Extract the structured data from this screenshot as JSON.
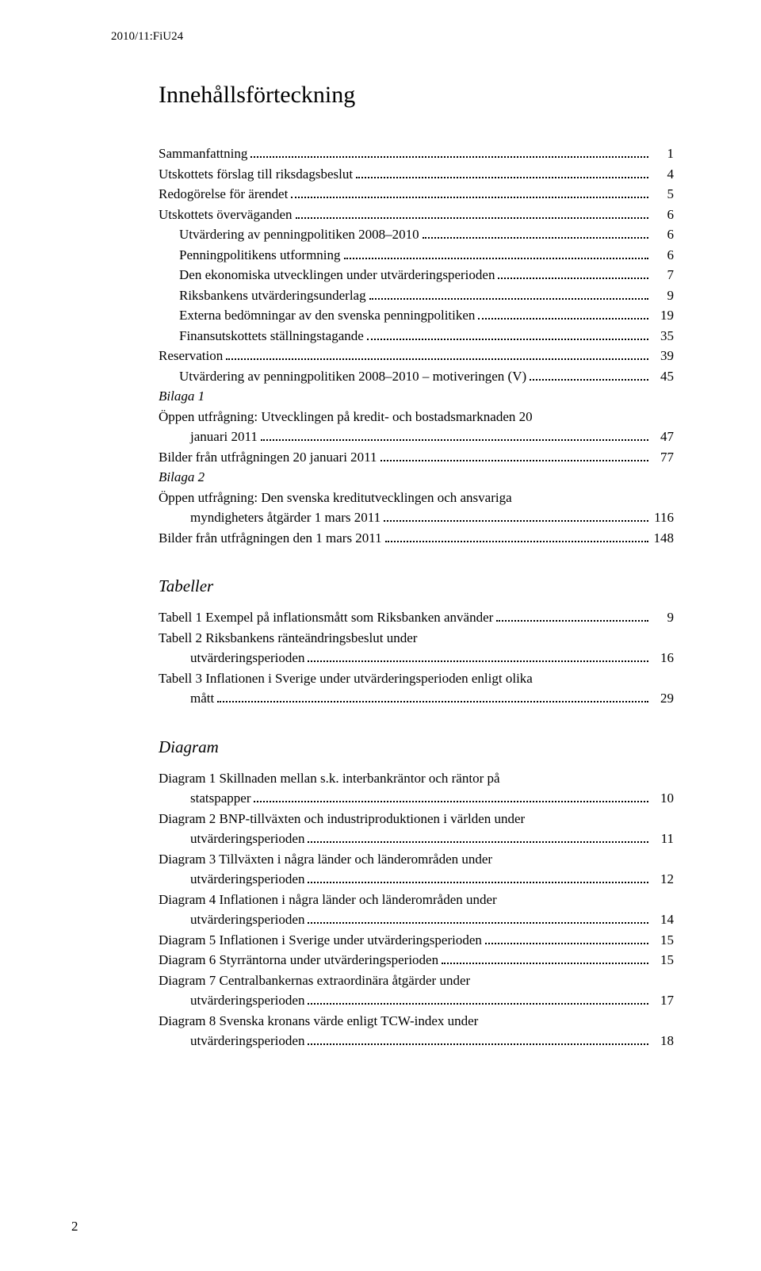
{
  "doc_id": "2010/11:FiU24",
  "title": "Innehållsförteckning",
  "page_number": "2",
  "sections": [
    {
      "type": "list",
      "items": [
        {
          "label": "Sammanfattning",
          "page": "1",
          "indent": 0
        },
        {
          "label": "Utskottets förslag till riksdagsbeslut",
          "page": "4",
          "indent": 0
        },
        {
          "label": "Redogörelse för ärendet",
          "page": "5",
          "indent": 0
        },
        {
          "label": "Utskottets överväganden",
          "page": "6",
          "indent": 0
        },
        {
          "label": "Utvärdering av penningpolitiken 2008–2010",
          "page": "6",
          "indent": 1
        },
        {
          "label": "Penningpolitikens utformning",
          "page": "6",
          "indent": 1
        },
        {
          "label": "Den ekonomiska utvecklingen under utvärderingsperioden",
          "page": "7",
          "indent": 1
        },
        {
          "label": "Riksbankens utvärderingsunderlag",
          "page": "9",
          "indent": 1
        },
        {
          "label": "Externa bedömningar av den svenska penningpolitiken",
          "page": "19",
          "indent": 1
        },
        {
          "label": "Finansutskottets ställningstagande",
          "page": "35",
          "indent": 1
        },
        {
          "label": "Reservation",
          "page": "39",
          "indent": 0
        },
        {
          "label": "Utvärdering av penningpolitiken 2008–2010 – motiveringen (V)",
          "page": "45",
          "indent": 1
        },
        {
          "label": "Bilaga 1",
          "italic": true,
          "nopage": true,
          "indent": 0
        },
        {
          "label_a": "Öppen utfrågning: Utvecklingen på kredit- och bostadsmarknaden 20",
          "label_b": "januari 2011",
          "page": "47",
          "indent": 0,
          "wrap": true
        },
        {
          "label": "Bilder från utfrågningen 20 januari 2011",
          "page": "77",
          "indent": 0
        },
        {
          "label": "Bilaga 2",
          "italic": true,
          "nopage": true,
          "indent": 0
        },
        {
          "label_a": "Öppen utfrågning: Den svenska kreditutvecklingen och ansvariga",
          "label_b": "myndigheters åtgärder 1 mars 2011",
          "page": "116",
          "indent": 0,
          "wrap": true
        },
        {
          "label": "Bilder från utfrågningen den 1 mars 2011",
          "page": "148",
          "indent": 0
        }
      ]
    },
    {
      "type": "heading",
      "text": "Tabeller"
    },
    {
      "type": "list",
      "items": [
        {
          "label": "Tabell 1 Exempel på inflationsmått som Riksbanken använder",
          "page": "9",
          "indent": 0
        },
        {
          "label_a": "Tabell 2 Riksbankens ränteändringsbeslut under",
          "label_b": "utvärderingsperioden",
          "page": "16",
          "indent": 0,
          "wrap": true
        },
        {
          "label_a": "Tabell 3 Inflationen i Sverige under utvärderingsperioden enligt olika",
          "label_b": "mått",
          "page": "29",
          "indent": 0,
          "wrap": true
        }
      ]
    },
    {
      "type": "heading",
      "text": "Diagram"
    },
    {
      "type": "list",
      "items": [
        {
          "label_a": "Diagram 1 Skillnaden mellan s.k. interbankräntor och räntor på",
          "label_b": "statspapper",
          "page": "10",
          "indent": 0,
          "wrap": true
        },
        {
          "label_a": "Diagram 2 BNP-tillväxten och industriproduktionen i världen under",
          "label_b": "utvärderingsperioden",
          "page": "11",
          "indent": 0,
          "wrap": true
        },
        {
          "label_a": "Diagram 3 Tillväxten i några länder och länderområden under",
          "label_b": "utvärderingsperioden",
          "page": "12",
          "indent": 0,
          "wrap": true
        },
        {
          "label_a": "Diagram 4 Inflationen i några länder och länderområden under",
          "label_b": "utvärderingsperioden",
          "page": "14",
          "indent": 0,
          "wrap": true
        },
        {
          "label": "Diagram 5 Inflationen i Sverige under utvärderingsperioden",
          "page": "15",
          "indent": 0
        },
        {
          "label": "Diagram 6 Styrräntorna under utvärderingsperioden",
          "page": "15",
          "indent": 0
        },
        {
          "label_a": "Diagram 7 Centralbankernas extraordinära åtgärder under",
          "label_b": "utvärderingsperioden",
          "page": "17",
          "indent": 0,
          "wrap": true
        },
        {
          "label_a": "Diagram 8 Svenska kronans värde enligt TCW-index under",
          "label_b": "utvärderingsperioden",
          "page": "18",
          "indent": 0,
          "wrap": true
        }
      ]
    }
  ]
}
